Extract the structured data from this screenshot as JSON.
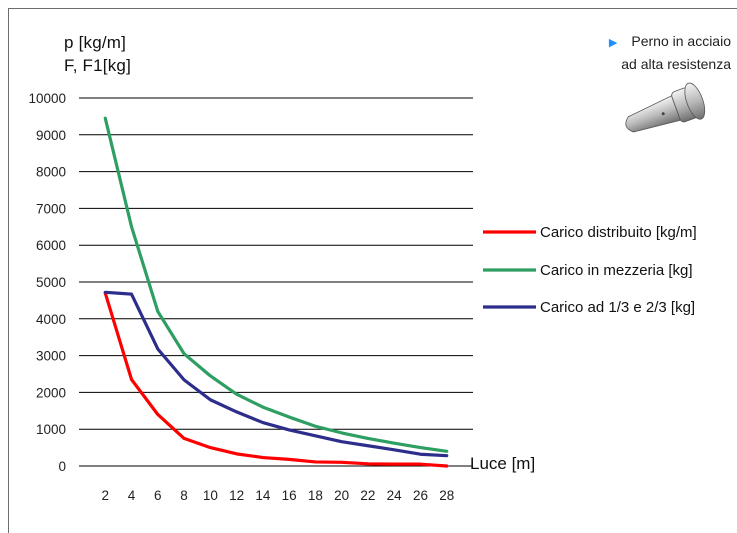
{
  "note": {
    "line1": "Perno in acciaio",
    "line2": "ad alta resistenza",
    "bullet_color": "#1e90ff",
    "image": "steel-pin-illustration"
  },
  "chart_data": {
    "type": "line",
    "ylabel_line1": "p [kg/m]",
    "ylabel_line2": "F, F1[kg]",
    "xlabel": "Luce [m]",
    "x": [
      2,
      4,
      6,
      8,
      10,
      12,
      14,
      16,
      18,
      20,
      22,
      24,
      26,
      28
    ],
    "ylim": [
      0,
      10000
    ],
    "yticks": [
      0,
      1000,
      2000,
      3000,
      4000,
      5000,
      6000,
      7000,
      8000,
      9000,
      10000
    ],
    "grid": "horizontal",
    "legend_position": "right",
    "series": [
      {
        "name": "Carico distribuito [kg/m]",
        "color": "#ff0000",
        "values": [
          4700,
          2350,
          1400,
          750,
          500,
          330,
          230,
          180,
          110,
          100,
          60,
          50,
          50,
          0
        ]
      },
      {
        "name": "Carico in mezzeria [kg]",
        "color": "#2e9e63",
        "values": [
          9450,
          6500,
          4200,
          3050,
          2450,
          1950,
          1600,
          1330,
          1080,
          900,
          750,
          620,
          500,
          400
        ]
      },
      {
        "name": "Carico ad 1/3 e 2/3 [kg]",
        "color": "#2d2d8c",
        "values": [
          4720,
          4670,
          3180,
          2340,
          1800,
          1470,
          1180,
          980,
          820,
          660,
          550,
          440,
          320,
          280
        ]
      }
    ]
  }
}
